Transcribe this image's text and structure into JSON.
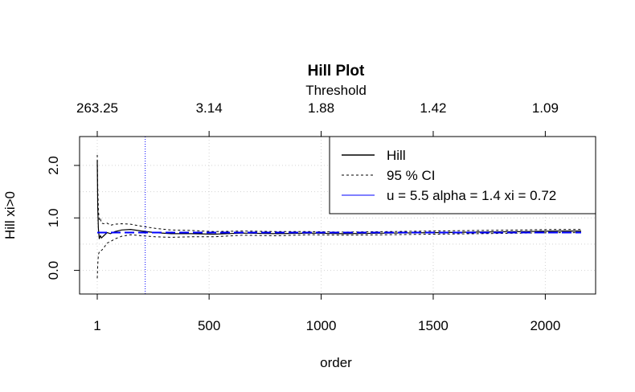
{
  "chart_data": {
    "type": "line",
    "title": "Hill Plot",
    "top_axis_title": "Threshold",
    "xlabel": "order",
    "ylabel": "Hill xi>0",
    "xlim": [
      1,
      2160
    ],
    "ylim": [
      -0.45,
      2.55
    ],
    "x_ticks": [
      1,
      500,
      1000,
      1500,
      2000
    ],
    "y_ticks": [
      0.0,
      1.0,
      2.0
    ],
    "y_tick_labels": [
      "0.0",
      "1.0",
      "2.0"
    ],
    "top_tick_orders": [
      1,
      500,
      1000,
      1500,
      2000
    ],
    "top_tick_labels": [
      "263.25",
      "3.14",
      "1.88",
      "1.42",
      "1.09"
    ],
    "grid": true,
    "legend_position": "top-right",
    "legend": [
      {
        "label": "Hill",
        "style": "solid",
        "color": "#000000"
      },
      {
        "label": "95 % CI",
        "style": "dashed",
        "color": "#000000"
      },
      {
        "label": "u = 5.5 alpha = 1.4 xi = 0.72",
        "style": "solid",
        "color": "#0000ff"
      }
    ],
    "reference_lines": {
      "vertical_order": 215,
      "horizontal_xi": 0.72,
      "color": "#0000ff"
    },
    "series": [
      {
        "name": "Hill",
        "style": "solid",
        "x": [
          1,
          3,
          6,
          10,
          15,
          20,
          30,
          45,
          60,
          80,
          110,
          150,
          200,
          260,
          330,
          420,
          520,
          650,
          800,
          950,
          1100,
          1300,
          1500,
          1700,
          1900,
          2050,
          2160
        ],
        "y": [
          2.1,
          1.2,
          0.8,
          0.6,
          0.66,
          0.62,
          0.66,
          0.72,
          0.7,
          0.74,
          0.77,
          0.78,
          0.75,
          0.72,
          0.7,
          0.7,
          0.69,
          0.71,
          0.7,
          0.71,
          0.7,
          0.71,
          0.72,
          0.73,
          0.74,
          0.75,
          0.75
        ]
      },
      {
        "name": "95 % CI",
        "style": "dashed",
        "x": [
          1,
          3,
          6,
          10,
          15,
          20,
          30,
          45,
          60,
          80,
          110,
          150,
          200,
          260,
          330,
          420,
          520,
          650,
          800,
          950,
          1100,
          1300,
          1500,
          1700,
          1900,
          2050,
          2160
        ],
        "y": [
          2.2,
          1.6,
          1.15,
          0.95,
          0.98,
          0.9,
          0.89,
          0.9,
          0.86,
          0.88,
          0.89,
          0.88,
          0.84,
          0.8,
          0.77,
          0.76,
          0.74,
          0.75,
          0.74,
          0.74,
          0.73,
          0.74,
          0.75,
          0.76,
          0.77,
          0.78,
          0.78
        ]
      },
      {
        "name": "95 % CI lower",
        "style": "dashed",
        "x": [
          1,
          3,
          6,
          10,
          15,
          20,
          30,
          45,
          60,
          80,
          110,
          150,
          200,
          260,
          330,
          420,
          520,
          650,
          800,
          950,
          1100,
          1300,
          1500,
          1700,
          1900,
          2050,
          2160
        ],
        "y": [
          -0.15,
          0.1,
          0.3,
          0.35,
          0.38,
          0.38,
          0.43,
          0.52,
          0.55,
          0.6,
          0.65,
          0.68,
          0.66,
          0.64,
          0.63,
          0.64,
          0.64,
          0.67,
          0.66,
          0.68,
          0.67,
          0.68,
          0.69,
          0.7,
          0.71,
          0.72,
          0.72
        ]
      }
    ]
  }
}
